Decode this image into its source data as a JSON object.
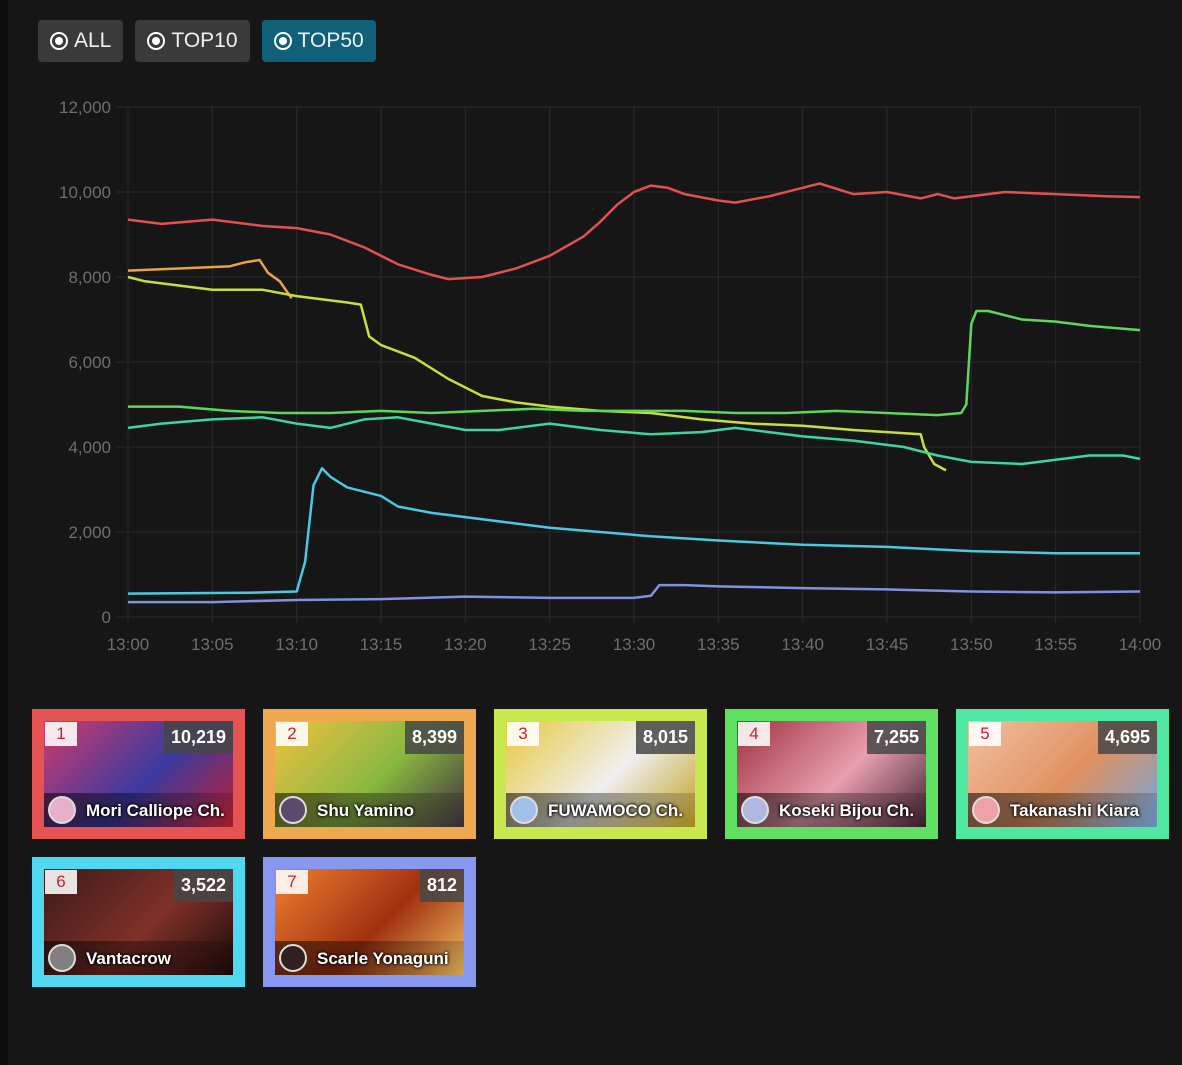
{
  "filters": [
    {
      "label": "ALL",
      "active": false
    },
    {
      "label": "TOP10",
      "active": false
    },
    {
      "label": "TOP50",
      "active": true
    }
  ],
  "chart_data": {
    "type": "line",
    "x_ticks": [
      "13:00",
      "13:05",
      "13:10",
      "13:15",
      "13:20",
      "13:25",
      "13:30",
      "13:35",
      "13:40",
      "13:45",
      "13:50",
      "13:55",
      "14:00"
    ],
    "y_ticks": [
      "0",
      "2,000",
      "4,000",
      "6,000",
      "8,000",
      "10,000",
      "12,000"
    ],
    "ylim": [
      0,
      12000
    ],
    "x_range_minutes": [
      0,
      60
    ],
    "grid": true,
    "series": [
      {
        "color": "#e05252",
        "points": [
          [
            0,
            9350
          ],
          [
            2,
            9250
          ],
          [
            5,
            9350
          ],
          [
            8,
            9200
          ],
          [
            10,
            9150
          ],
          [
            12,
            9000
          ],
          [
            14,
            8700
          ],
          [
            16,
            8300
          ],
          [
            18,
            8050
          ],
          [
            19,
            7950
          ],
          [
            21,
            8000
          ],
          [
            23,
            8200
          ],
          [
            25,
            8500
          ],
          [
            27,
            8950
          ],
          [
            28,
            9300
          ],
          [
            29,
            9700
          ],
          [
            30,
            10000
          ],
          [
            31,
            10150
          ],
          [
            32,
            10100
          ],
          [
            33,
            9950
          ],
          [
            35,
            9800
          ],
          [
            36,
            9750
          ],
          [
            38,
            9900
          ],
          [
            40,
            10100
          ],
          [
            41,
            10200
          ],
          [
            43,
            9950
          ],
          [
            45,
            10000
          ],
          [
            47,
            9850
          ],
          [
            48,
            9950
          ],
          [
            49,
            9850
          ],
          [
            52,
            10000
          ],
          [
            55,
            9950
          ],
          [
            58,
            9900
          ],
          [
            60,
            9880
          ]
        ]
      },
      {
        "color": "#e8a24a",
        "points": [
          [
            0,
            8150
          ],
          [
            3,
            8200
          ],
          [
            6,
            8250
          ],
          [
            7,
            8350
          ],
          [
            7.8,
            8400
          ],
          [
            8.3,
            8100
          ],
          [
            9,
            7900
          ],
          [
            9.7,
            7500
          ]
        ]
      },
      {
        "color": "#c8de40",
        "points": [
          [
            0,
            8000
          ],
          [
            1,
            7900
          ],
          [
            3,
            7800
          ],
          [
            5,
            7700
          ],
          [
            8,
            7700
          ],
          [
            10,
            7550
          ],
          [
            12,
            7450
          ],
          [
            13,
            7400
          ],
          [
            13.8,
            7350
          ],
          [
            14.3,
            6600
          ],
          [
            15,
            6400
          ],
          [
            17,
            6100
          ],
          [
            19,
            5600
          ],
          [
            21,
            5200
          ],
          [
            23,
            5050
          ],
          [
            25,
            4950
          ],
          [
            28,
            4850
          ],
          [
            31,
            4800
          ],
          [
            34,
            4650
          ],
          [
            37,
            4550
          ],
          [
            40,
            4500
          ],
          [
            43,
            4400
          ],
          [
            45,
            4350
          ],
          [
            47,
            4300
          ],
          [
            47.2,
            4000
          ],
          [
            47.8,
            3600
          ],
          [
            48.5,
            3450
          ]
        ]
      },
      {
        "color": "#5ed65e",
        "points": [
          [
            0,
            4950
          ],
          [
            3,
            4950
          ],
          [
            6,
            4850
          ],
          [
            9,
            4800
          ],
          [
            12,
            4800
          ],
          [
            15,
            4850
          ],
          [
            18,
            4800
          ],
          [
            21,
            4850
          ],
          [
            24,
            4900
          ],
          [
            27,
            4850
          ],
          [
            30,
            4850
          ],
          [
            33,
            4850
          ],
          [
            36,
            4800
          ],
          [
            39,
            4800
          ],
          [
            42,
            4850
          ],
          [
            45,
            4800
          ],
          [
            48,
            4750
          ],
          [
            49.4,
            4800
          ],
          [
            49.7,
            5000
          ],
          [
            50,
            6900
          ],
          [
            50.3,
            7200
          ],
          [
            51,
            7200
          ],
          [
            53,
            7000
          ],
          [
            55,
            6950
          ],
          [
            57,
            6850
          ],
          [
            60,
            6750
          ]
        ]
      },
      {
        "color": "#3fd69c",
        "points": [
          [
            0,
            4450
          ],
          [
            2,
            4550
          ],
          [
            5,
            4650
          ],
          [
            8,
            4700
          ],
          [
            10,
            4550
          ],
          [
            12,
            4450
          ],
          [
            14,
            4650
          ],
          [
            16,
            4700
          ],
          [
            18,
            4550
          ],
          [
            20,
            4400
          ],
          [
            22,
            4400
          ],
          [
            25,
            4550
          ],
          [
            28,
            4400
          ],
          [
            31,
            4300
          ],
          [
            34,
            4350
          ],
          [
            36,
            4450
          ],
          [
            38,
            4350
          ],
          [
            40,
            4250
          ],
          [
            43,
            4150
          ],
          [
            46,
            4000
          ],
          [
            48,
            3800
          ],
          [
            50,
            3650
          ],
          [
            53,
            3600
          ],
          [
            55,
            3700
          ],
          [
            57,
            3800
          ],
          [
            59,
            3800
          ],
          [
            60,
            3720
          ]
        ]
      },
      {
        "color": "#4cc8e0",
        "points": [
          [
            0,
            550
          ],
          [
            3,
            560
          ],
          [
            7,
            570
          ],
          [
            10,
            600
          ],
          [
            10.5,
            1300
          ],
          [
            11,
            3100
          ],
          [
            11.5,
            3500
          ],
          [
            12,
            3300
          ],
          [
            13,
            3050
          ],
          [
            15,
            2850
          ],
          [
            16,
            2600
          ],
          [
            18,
            2450
          ],
          [
            20,
            2350
          ],
          [
            22,
            2250
          ],
          [
            25,
            2100
          ],
          [
            28,
            2000
          ],
          [
            31,
            1900
          ],
          [
            35,
            1800
          ],
          [
            40,
            1700
          ],
          [
            45,
            1650
          ],
          [
            50,
            1550
          ],
          [
            55,
            1500
          ],
          [
            60,
            1500
          ]
        ]
      },
      {
        "color": "#7e92e0",
        "points": [
          [
            0,
            350
          ],
          [
            5,
            350
          ],
          [
            10,
            400
          ],
          [
            15,
            420
          ],
          [
            20,
            480
          ],
          [
            25,
            450
          ],
          [
            30,
            450
          ],
          [
            31,
            500
          ],
          [
            31.5,
            750
          ],
          [
            33,
            750
          ],
          [
            35,
            720
          ],
          [
            40,
            680
          ],
          [
            45,
            650
          ],
          [
            50,
            600
          ],
          [
            55,
            580
          ],
          [
            60,
            600
          ]
        ]
      }
    ]
  },
  "cards": [
    {
      "rank": "1",
      "count": "10,219",
      "name": "Mori Calliope Ch.",
      "border": "#e55353",
      "bg": [
        "#d03a6a",
        "#3a3aa0",
        "#c02030"
      ],
      "avatar": "#e7b0c8"
    },
    {
      "rank": "2",
      "count": "8,399",
      "name": "Shu Yamino",
      "border": "#f0a850",
      "bg": [
        "#f0c040",
        "#88b840",
        "#403040"
      ],
      "avatar": "#5a4a70"
    },
    {
      "rank": "3",
      "count": "8,015",
      "name": "FUWAMOCO Ch.",
      "border": "#c8e850",
      "bg": [
        "#e8c840",
        "#f0f0f0",
        "#c0a020"
      ],
      "avatar": "#a0c0e8"
    },
    {
      "rank": "4",
      "count": "7,255",
      "name": "Koseki Bijou Ch.",
      "border": "#60e060",
      "bg": [
        "#a03040",
        "#e8a0b0",
        "#402030"
      ],
      "avatar": "#b0b8e0"
    },
    {
      "rank": "5",
      "count": "4,695",
      "name": "Takanashi Kiara",
      "border": "#50e8a0",
      "bg": [
        "#f0c0a0",
        "#e09060",
        "#70a8e0"
      ],
      "avatar": "#f0a0a8"
    },
    {
      "rank": "6",
      "count": "3,522",
      "name": "Vantacrow",
      "border": "#50d8f0",
      "bg": [
        "#3a1a18",
        "#803028",
        "#1a0a0a"
      ],
      "avatar": "#808080"
    },
    {
      "rank": "7",
      "count": "812",
      "name": "Scarle Yonaguni",
      "border": "#8898f0",
      "bg": [
        "#f08030",
        "#a03010",
        "#f0c060"
      ],
      "avatar": "#302020"
    }
  ]
}
